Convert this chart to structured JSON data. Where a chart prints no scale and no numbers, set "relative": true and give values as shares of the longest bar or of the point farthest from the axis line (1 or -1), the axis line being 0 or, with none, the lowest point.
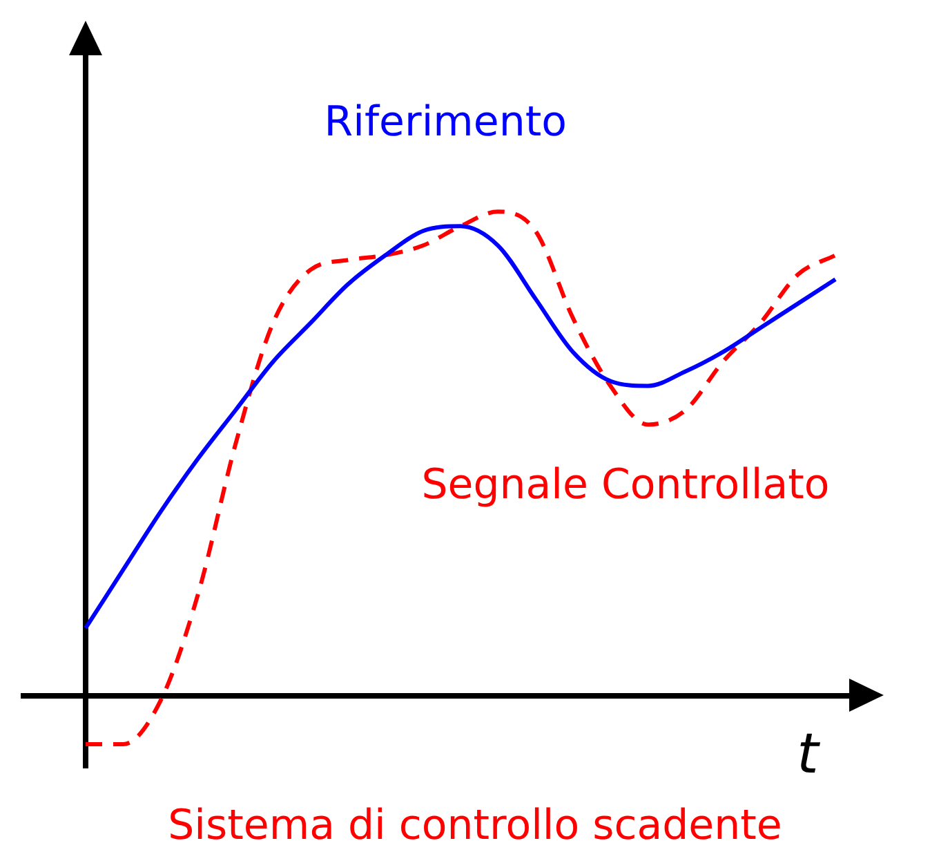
{
  "chart_data": {
    "type": "line",
    "relative": true,
    "xlabel": "t",
    "categories": [
      null,
      null,
      null,
      null,
      null,
      null,
      null,
      null,
      null,
      null,
      null,
      null,
      null,
      null,
      null,
      null,
      null,
      null,
      null,
      null,
      null
    ],
    "series": [
      {
        "name": "Riferimento",
        "color": "#0000ff",
        "line_style": "solid",
        "values": [
          0.14,
          0.26,
          0.38,
          0.49,
          0.59,
          0.69,
          0.77,
          0.85,
          0.91,
          0.96,
          0.97,
          0.93,
          0.82,
          0.71,
          0.65,
          0.64,
          0.67,
          0.71,
          0.76,
          0.81,
          0.86
        ]
      },
      {
        "name": "Segnale Controllato",
        "color": "#ff0000",
        "line_style": "dashed",
        "values": [
          -0.1,
          -0.1,
          -0.01,
          0.21,
          0.52,
          0.77,
          0.88,
          0.9,
          0.91,
          0.93,
          0.97,
          1.0,
          0.96,
          0.78,
          0.64,
          0.56,
          0.59,
          0.69,
          0.77,
          0.87,
          0.91
        ]
      }
    ],
    "marker": "none",
    "legend": false,
    "annotations": [
      "Sistema di controllo scadente"
    ]
  }
}
